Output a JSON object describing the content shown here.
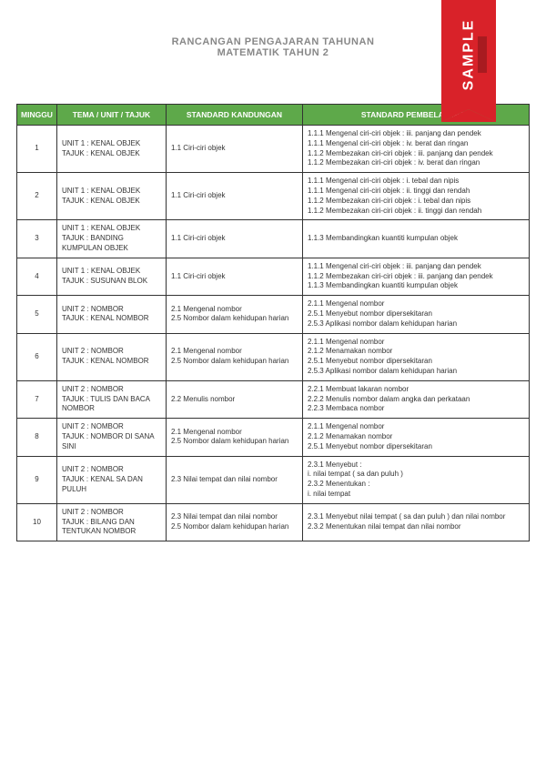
{
  "title": {
    "line1": "RANCANGAN PENGAJARAN TAHUNAN",
    "line2": "MATEMATIK TAHUN 2"
  },
  "stamp": {
    "text": "SAMPLE"
  },
  "headers": {
    "minggu": "MINGGU",
    "tema": "TEMA / UNIT / TAJUK",
    "sk": "STANDARD KANDUNGAN",
    "sp": "STANDARD PEMBELAJARAN"
  },
  "rows": [
    {
      "minggu": "1",
      "tema": "UNIT 1  : KENAL OBJEK\nTAJUK   : KENAL OBJEK",
      "sk": "1.1 Ciri-ciri objek",
      "sp": "1.1.1 Mengenal ciri-ciri objek : iii. panjang dan pendek\n1.1.1 Mengenal ciri-ciri objek : iv. berat dan ringan\n1.1.2 Membezakan ciri-ciri objek : iii. panjang dan pendek\n1.1.2 Membezakan ciri-ciri objek : iv. berat dan ringan"
    },
    {
      "minggu": "2",
      "tema": "UNIT 1  : KENAL OBJEK\nTAJUK   : KENAL OBJEK",
      "sk": "1.1 Ciri-ciri objek",
      "sp": "1.1.1 Mengenal ciri-ciri objek : i. tebal dan nipis\n1.1.1 Mengenal ciri-ciri objek : ii. tinggi dan rendah\n1.1.2 Membezakan ciri-ciri objek : i. tebal dan nipis\n1.1.2 Membezakan ciri-ciri objek : ii. tinggi dan rendah"
    },
    {
      "minggu": "3",
      "tema": "UNIT 1  : KENAL OBJEK\nTAJUK   : BANDING KUMPULAN OBJEK",
      "sk": "1.1 Ciri-ciri objek",
      "sp": "1.1.3 Membandingkan kuantiti kumpulan objek"
    },
    {
      "minggu": "4",
      "tema": "UNIT 1  : KENAL OBJEK\nTAJUK   : SUSUNAN BLOK",
      "sk": "1.1 Ciri-ciri objek",
      "sp": "1.1.1 Mengenal ciri-ciri objek : iii. panjang dan pendek\n1.1.2 Membezakan ciri-ciri objek : iii. panjang dan pendek\n1.1.3 Membandingkan kuantiti kumpulan objek"
    },
    {
      "minggu": "5",
      "tema": "UNIT 2  : NOMBOR\nTAJUK   : KENAL NOMBOR",
      "sk": "2.1 Mengenal nombor\n2.5 Nombor dalam kehidupan harian",
      "sp": "2.1.1 Mengenal nombor\n2.5.1 Menyebut nombor dipersekitaran\n2.5.3 Aplikasi nombor dalam kehidupan harian"
    },
    {
      "minggu": "6",
      "tema": "UNIT 2  : NOMBOR\nTAJUK   : KENAL NOMBOR",
      "sk": "2.1 Mengenal nombor\n2.5 Nombor dalam kehidupan harian",
      "sp": "2.1.1 Mengenal nombor\n2.1.2 Menamakan nombor\n2.5.1 Menyebut nombor dipersekitaran\n2.5.3 Aplikasi nombor dalam kehidupan harian"
    },
    {
      "minggu": "7",
      "tema": "UNIT 2  : NOMBOR\nTAJUK   : TULIS DAN BACA NOMBOR",
      "sk": "2.2 Menulis nombor",
      "sp": "2.2.1 Membuat lakaran nombor\n2.2.2 Menulis nombor dalam angka dan perkataan\n2.2.3 Membaca nombor"
    },
    {
      "minggu": "8",
      "tema": "UNIT 2  : NOMBOR\nTAJUK   : NOMBOR DI SANA SINI",
      "sk": "2.1 Mengenal nombor\n2.5 Nombor dalam kehidupan harian",
      "sp": "2.1.1 Mengenal nombor\n2.1.2 Menamakan nombor\n2.5.1 Menyebut nombor dipersekitaran"
    },
    {
      "minggu": "9",
      "tema": "UNIT 2  : NOMBOR\nTAJUK   : KENAL SA DAN PULUH",
      "sk": "2.3 Nilai tempat dan nilai nombor",
      "sp": "2.3.1 Menyebut :\ni. nilai tempat ( sa dan puluh )\n2.3.2 Menentukan :\ni. nilai tempat"
    },
    {
      "minggu": "10",
      "tema": "UNIT 2  : NOMBOR\nTAJUK   : BILANG DAN TENTUKAN NOMBOR",
      "sk": "2.3 Nilai tempat dan nilai nombor\n2.5 Nombor dalam kehidupan harian",
      "sp": "2.3.1 Menyebut nilai tempat ( sa dan puluh ) dan nilai nombor\n2.3.2 Menentukan nilai tempat dan nilai nombor"
    }
  ]
}
